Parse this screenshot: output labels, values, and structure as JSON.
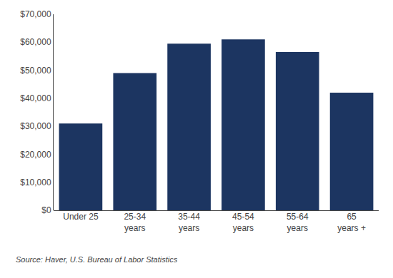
{
  "chart_data": {
    "type": "bar",
    "categories": [
      "Under 25",
      "25-34\nyears",
      "35-44\nyears",
      "45-54\nyears",
      "55-64\nyears",
      "65\nyears +"
    ],
    "values": [
      31000,
      49000,
      59500,
      61000,
      56500,
      42000
    ],
    "color": "#1c3561",
    "ylim": [
      0,
      70000
    ],
    "yticks": [
      {
        "value": 0,
        "label": "$0"
      },
      {
        "value": 10000,
        "label": "$10,000"
      },
      {
        "value": 20000,
        "label": "$20,000"
      },
      {
        "value": 30000,
        "label": "$30,000"
      },
      {
        "value": 40000,
        "label": "$40,000"
      },
      {
        "value": 50000,
        "label": "$50,000"
      },
      {
        "value": 60000,
        "label": "$60,000"
      },
      {
        "value": 70000,
        "label": "$70,000"
      }
    ],
    "annotations": [
      "Source: Haver, U.S. Bureau of Labor Statistics"
    ],
    "grid": false
  }
}
